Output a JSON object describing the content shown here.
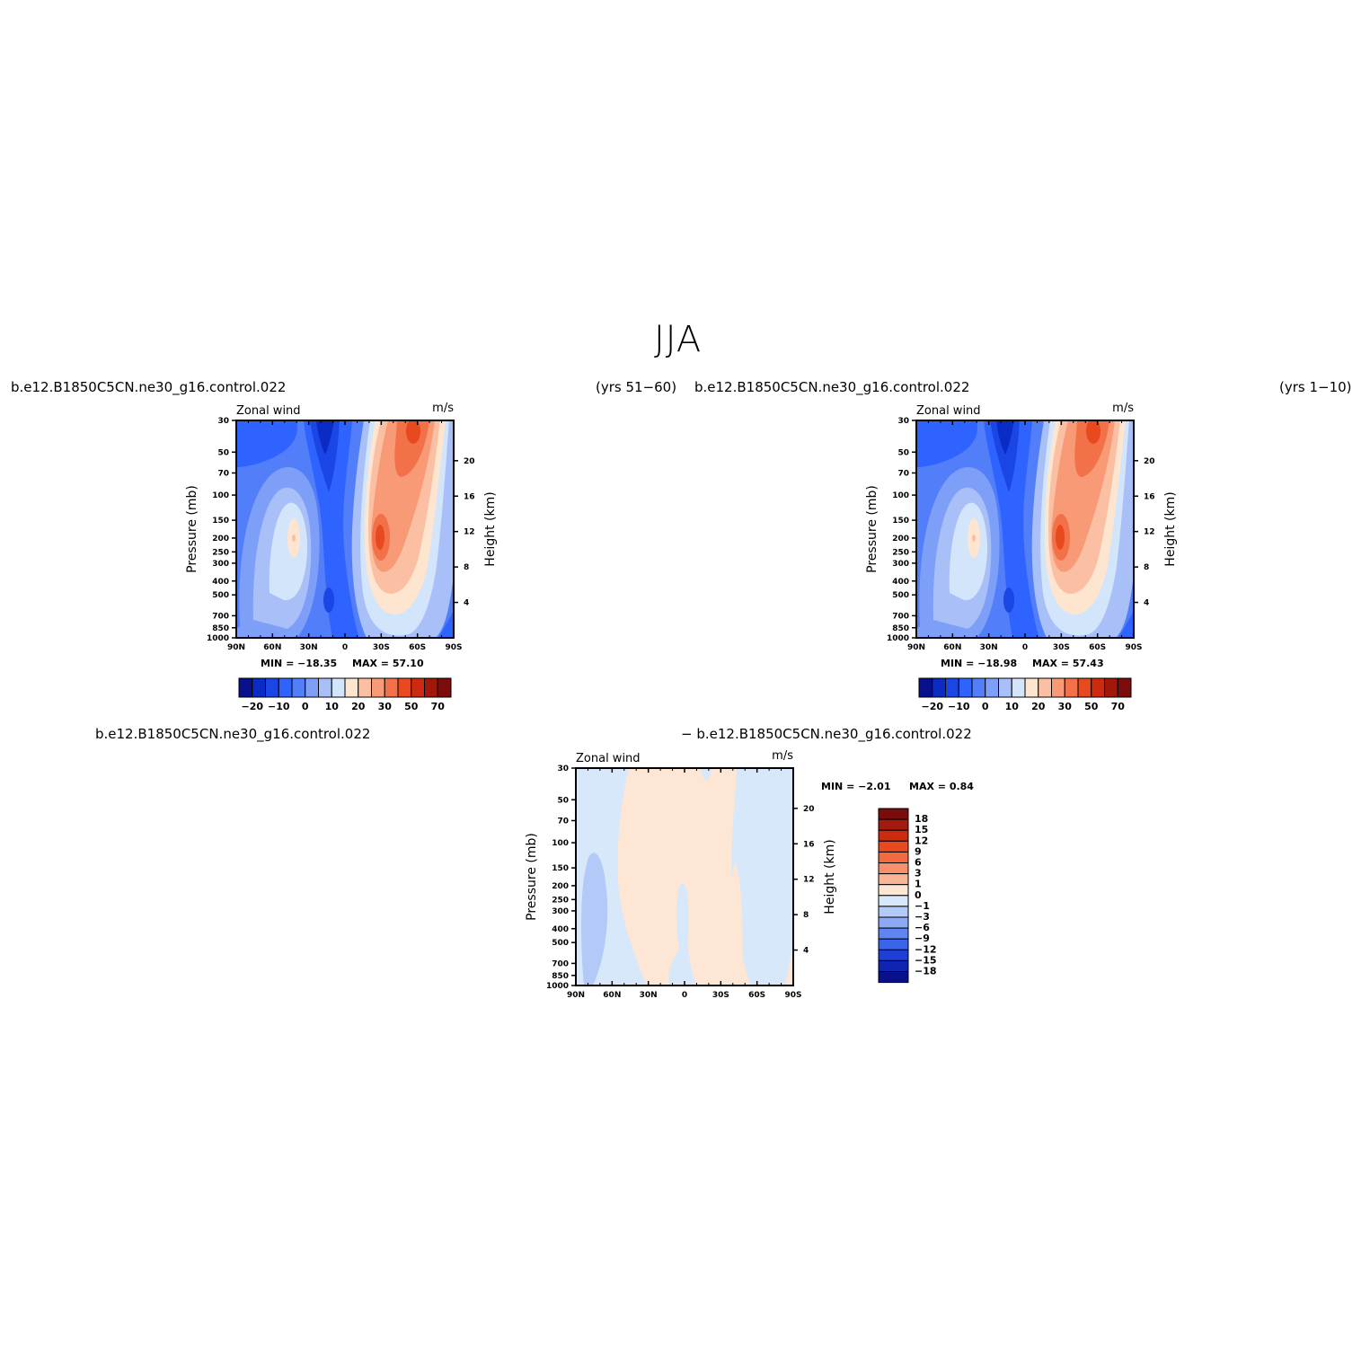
{
  "figure": {
    "title": "JJA",
    "top_left_case": "b.e12.B1850C5CN.ne30_g16.control.022",
    "top_left_years": "(yrs 51−60)",
    "top_right_case": "b.e12.B1850C5CN.ne30_g16.control.022",
    "top_right_years": "(yrs 1−10)",
    "bottom_case_left": "b.e12.B1850C5CN.ne30_g16.control.022",
    "bottom_case_right": "− b.e12.B1850C5CN.ne30_g16.control.022"
  },
  "chart_data": [
    {
      "type": "heatmap",
      "panel": "top-left",
      "title": "Zonal wind",
      "units": "m/s",
      "ylabel": "Pressure (mb)",
      "ylabel_right": "Height (km)",
      "x_ticks": [
        "90N",
        "60N",
        "30N",
        "0",
        "30S",
        "60S",
        "90S"
      ],
      "y_ticks": [
        30,
        50,
        70,
        100,
        150,
        200,
        250,
        300,
        400,
        500,
        700,
        850,
        1000
      ],
      "y_right_ticks": [
        4,
        8,
        12,
        16,
        20
      ],
      "min_label": "MIN = −18.35",
      "max_label": "MAX = 57.10",
      "colorbar_labels": [
        "−20",
        "−10",
        "0",
        "10",
        "20",
        "30",
        "50",
        "70"
      ],
      "features": [
        {
          "name": "SH westerly jet core",
          "lat": "40S",
          "pressure": 200,
          "value": 57.1
        },
        {
          "name": "equatorial easterlies",
          "lat": "15N",
          "pressure": 30,
          "value": -18.35
        }
      ]
    },
    {
      "type": "heatmap",
      "panel": "top-right",
      "title": "Zonal wind",
      "units": "m/s",
      "ylabel": "Pressure (mb)",
      "ylabel_right": "Height (km)",
      "x_ticks": [
        "90N",
        "60N",
        "30N",
        "0",
        "30S",
        "60S",
        "90S"
      ],
      "y_ticks": [
        30,
        50,
        70,
        100,
        150,
        200,
        250,
        300,
        400,
        500,
        700,
        850,
        1000
      ],
      "y_right_ticks": [
        4,
        8,
        12,
        16,
        20
      ],
      "min_label": "MIN = −18.98",
      "max_label": "MAX = 57.43",
      "colorbar_labels": [
        "−20",
        "−10",
        "0",
        "10",
        "20",
        "30",
        "50",
        "70"
      ],
      "features": [
        {
          "name": "SH westerly jet core",
          "lat": "40S",
          "pressure": 200,
          "value": 57.43
        },
        {
          "name": "equatorial easterlies",
          "lat": "15N",
          "pressure": 30,
          "value": -18.98
        }
      ]
    },
    {
      "type": "heatmap",
      "panel": "bottom-difference",
      "title": "Zonal wind",
      "units": "m/s",
      "ylabel": "Pressure (mb)",
      "ylabel_right": "Height (km)",
      "x_ticks": [
        "90N",
        "60N",
        "30N",
        "0",
        "30S",
        "60S",
        "90S"
      ],
      "y_ticks": [
        30,
        50,
        70,
        100,
        150,
        200,
        250,
        300,
        400,
        500,
        700,
        850,
        1000
      ],
      "y_right_ticks": [
        4,
        8,
        12,
        16,
        20
      ],
      "min_label": "MIN = −2.01",
      "max_label": "MAX = 0.84",
      "colorbar_labels": [
        "18",
        "15",
        "12",
        "9",
        "6",
        "3",
        "1",
        "0",
        "−1",
        "−3",
        "−6",
        "−9",
        "−12",
        "−15",
        "−18"
      ]
    }
  ],
  "colors": {
    "levels": [
      "#08108c",
      "#0a2bc4",
      "#1a46e6",
      "#2f63ff",
      "#527ff9",
      "#7d9ff7",
      "#a8bff8",
      "#d3e5fb",
      "#fde5d0",
      "#fbc0a3",
      "#f79a75",
      "#f27148",
      "#e8491f",
      "#cc2b10",
      "#a11709",
      "#7a0c0c"
    ],
    "diff_levels": [
      "#7a0c0c",
      "#a51a10",
      "#cc2b10",
      "#e8491f",
      "#f26a3f",
      "#f7906a",
      "#f9b596",
      "#fde6d3",
      "#d8e8fb",
      "#b3c9f8",
      "#8ca9f5",
      "#5f85f3",
      "#3a64ea",
      "#1e3fd6",
      "#0f24b0",
      "#08108c"
    ]
  }
}
